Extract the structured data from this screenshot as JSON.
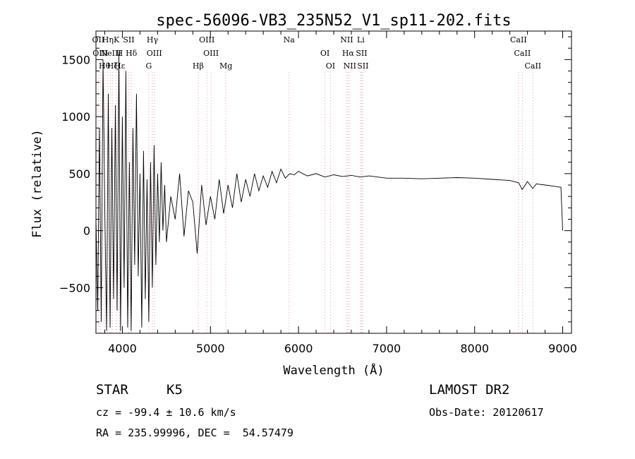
{
  "chart_data": {
    "type": "line",
    "title": "spec-56096-VB3_235N52_V1_sp11-202.fits",
    "xlabel": "Wavelength (Å)",
    "ylabel": "Flux (relative)",
    "xlim": [
      3700,
      9100
    ],
    "ylim": [
      -900,
      1750
    ],
    "x_ticks": [
      4000,
      5000,
      6000,
      7000,
      8000,
      9000
    ],
    "y_ticks": [
      -500,
      0,
      500,
      1000,
      1500
    ],
    "grid": false,
    "line_color": "#000000",
    "marker_color": "#e8a0a0",
    "series": [
      {
        "x": [
          3700,
          3720,
          3740,
          3760,
          3780,
          3800,
          3820,
          3840,
          3860,
          3880,
          3900,
          3920,
          3940,
          3960,
          3980,
          4000,
          4020,
          4040,
          4060,
          4080,
          4100,
          4120,
          4140,
          4160,
          4180,
          4200,
          4220,
          4240,
          4260,
          4280,
          4300,
          4320,
          4340,
          4360,
          4380,
          4400,
          4420,
          4440,
          4460,
          4480,
          4500,
          4550,
          4600,
          4650,
          4700,
          4750,
          4800,
          4850,
          4900,
          4950,
          5000,
          5050,
          5100,
          5150,
          5200,
          5250,
          5300,
          5350,
          5400,
          5450,
          5500,
          5550,
          5600,
          5650,
          5700,
          5750,
          5800,
          5850,
          5900,
          5950,
          6000,
          6100,
          6200,
          6300,
          6400,
          6500,
          6600,
          6700,
          6800,
          6900,
          7000,
          7200,
          7400,
          7600,
          7800,
          8000,
          8200,
          8400,
          8500,
          8540,
          8600,
          8660,
          8700,
          8800,
          8900,
          8980,
          9000
        ],
        "y": [
          100,
          -700,
          900,
          -800,
          1500,
          200,
          -880,
          1200,
          -850,
          900,
          -600,
          1100,
          -700,
          1550,
          -880,
          1000,
          -500,
          1400,
          -850,
          600,
          -880,
          900,
          -300,
          1200,
          -400,
          500,
          -850,
          700,
          -600,
          450,
          -800,
          600,
          -500,
          750,
          -300,
          500,
          -100,
          600,
          0,
          400,
          -100,
          300,
          100,
          500,
          -50,
          350,
          250,
          -200,
          400,
          50,
          300,
          100,
          450,
          150,
          400,
          200,
          500,
          250,
          450,
          300,
          500,
          350,
          480,
          380,
          520,
          420,
          540,
          460,
          500,
          490,
          520,
          480,
          500,
          470,
          490,
          475,
          485,
          470,
          480,
          470,
          460,
          460,
          455,
          460,
          465,
          460,
          450,
          440,
          420,
          360,
          430,
          370,
          410,
          400,
          390,
          380,
          0
        ]
      }
    ],
    "line_markers": [
      {
        "wavelength": 3727,
        "label": "OII"
      },
      {
        "wavelength": 3750,
        "label": "OIII"
      },
      {
        "wavelength": 3797,
        "label": "Hθ"
      },
      {
        "wavelength": 3835,
        "label": "Hη"
      },
      {
        "wavelength": 3869,
        "label": "NeIII"
      },
      {
        "wavelength": 3889,
        "label": "Hζ"
      },
      {
        "wavelength": 3933,
        "label": "K"
      },
      {
        "wavelength": 3968,
        "label": "H"
      },
      {
        "wavelength": 3970,
        "label": "Hε"
      },
      {
        "wavelength": 4072,
        "label": "SII"
      },
      {
        "wavelength": 4102,
        "label": "Hδ"
      },
      {
        "wavelength": 4300,
        "label": "G"
      },
      {
        "wavelength": 4341,
        "label": "Hγ"
      },
      {
        "wavelength": 4363,
        "label": "OIII"
      },
      {
        "wavelength": 4861,
        "label": "Hβ"
      },
      {
        "wavelength": 4959,
        "label": "OIII"
      },
      {
        "wavelength": 5007,
        "label": "OIII"
      },
      {
        "wavelength": 5175,
        "label": "Mg"
      },
      {
        "wavelength": 5893,
        "label": "Na"
      },
      {
        "wavelength": 6300,
        "label": "OI"
      },
      {
        "wavelength": 6363,
        "label": "OI"
      },
      {
        "wavelength": 6548,
        "label": "NII"
      },
      {
        "wavelength": 6563,
        "label": "Hα"
      },
      {
        "wavelength": 6583,
        "label": "NII"
      },
      {
        "wavelength": 6707,
        "label": "Li"
      },
      {
        "wavelength": 6716,
        "label": "SII"
      },
      {
        "wavelength": 6731,
        "label": "SII"
      },
      {
        "wavelength": 8498,
        "label": "CaII"
      },
      {
        "wavelength": 8542,
        "label": "CaII"
      },
      {
        "wavelength": 8662,
        "label": "CaII"
      }
    ]
  },
  "info": {
    "object_class": "STAR",
    "subclass": "K5",
    "survey": "LAMOST DR2",
    "cz": "cz = -99.4 ± 10.6 km/s",
    "obs_date": "Obs-Date: 20120617",
    "coords": "RA = 235.99996, DEC =  54.57479"
  }
}
